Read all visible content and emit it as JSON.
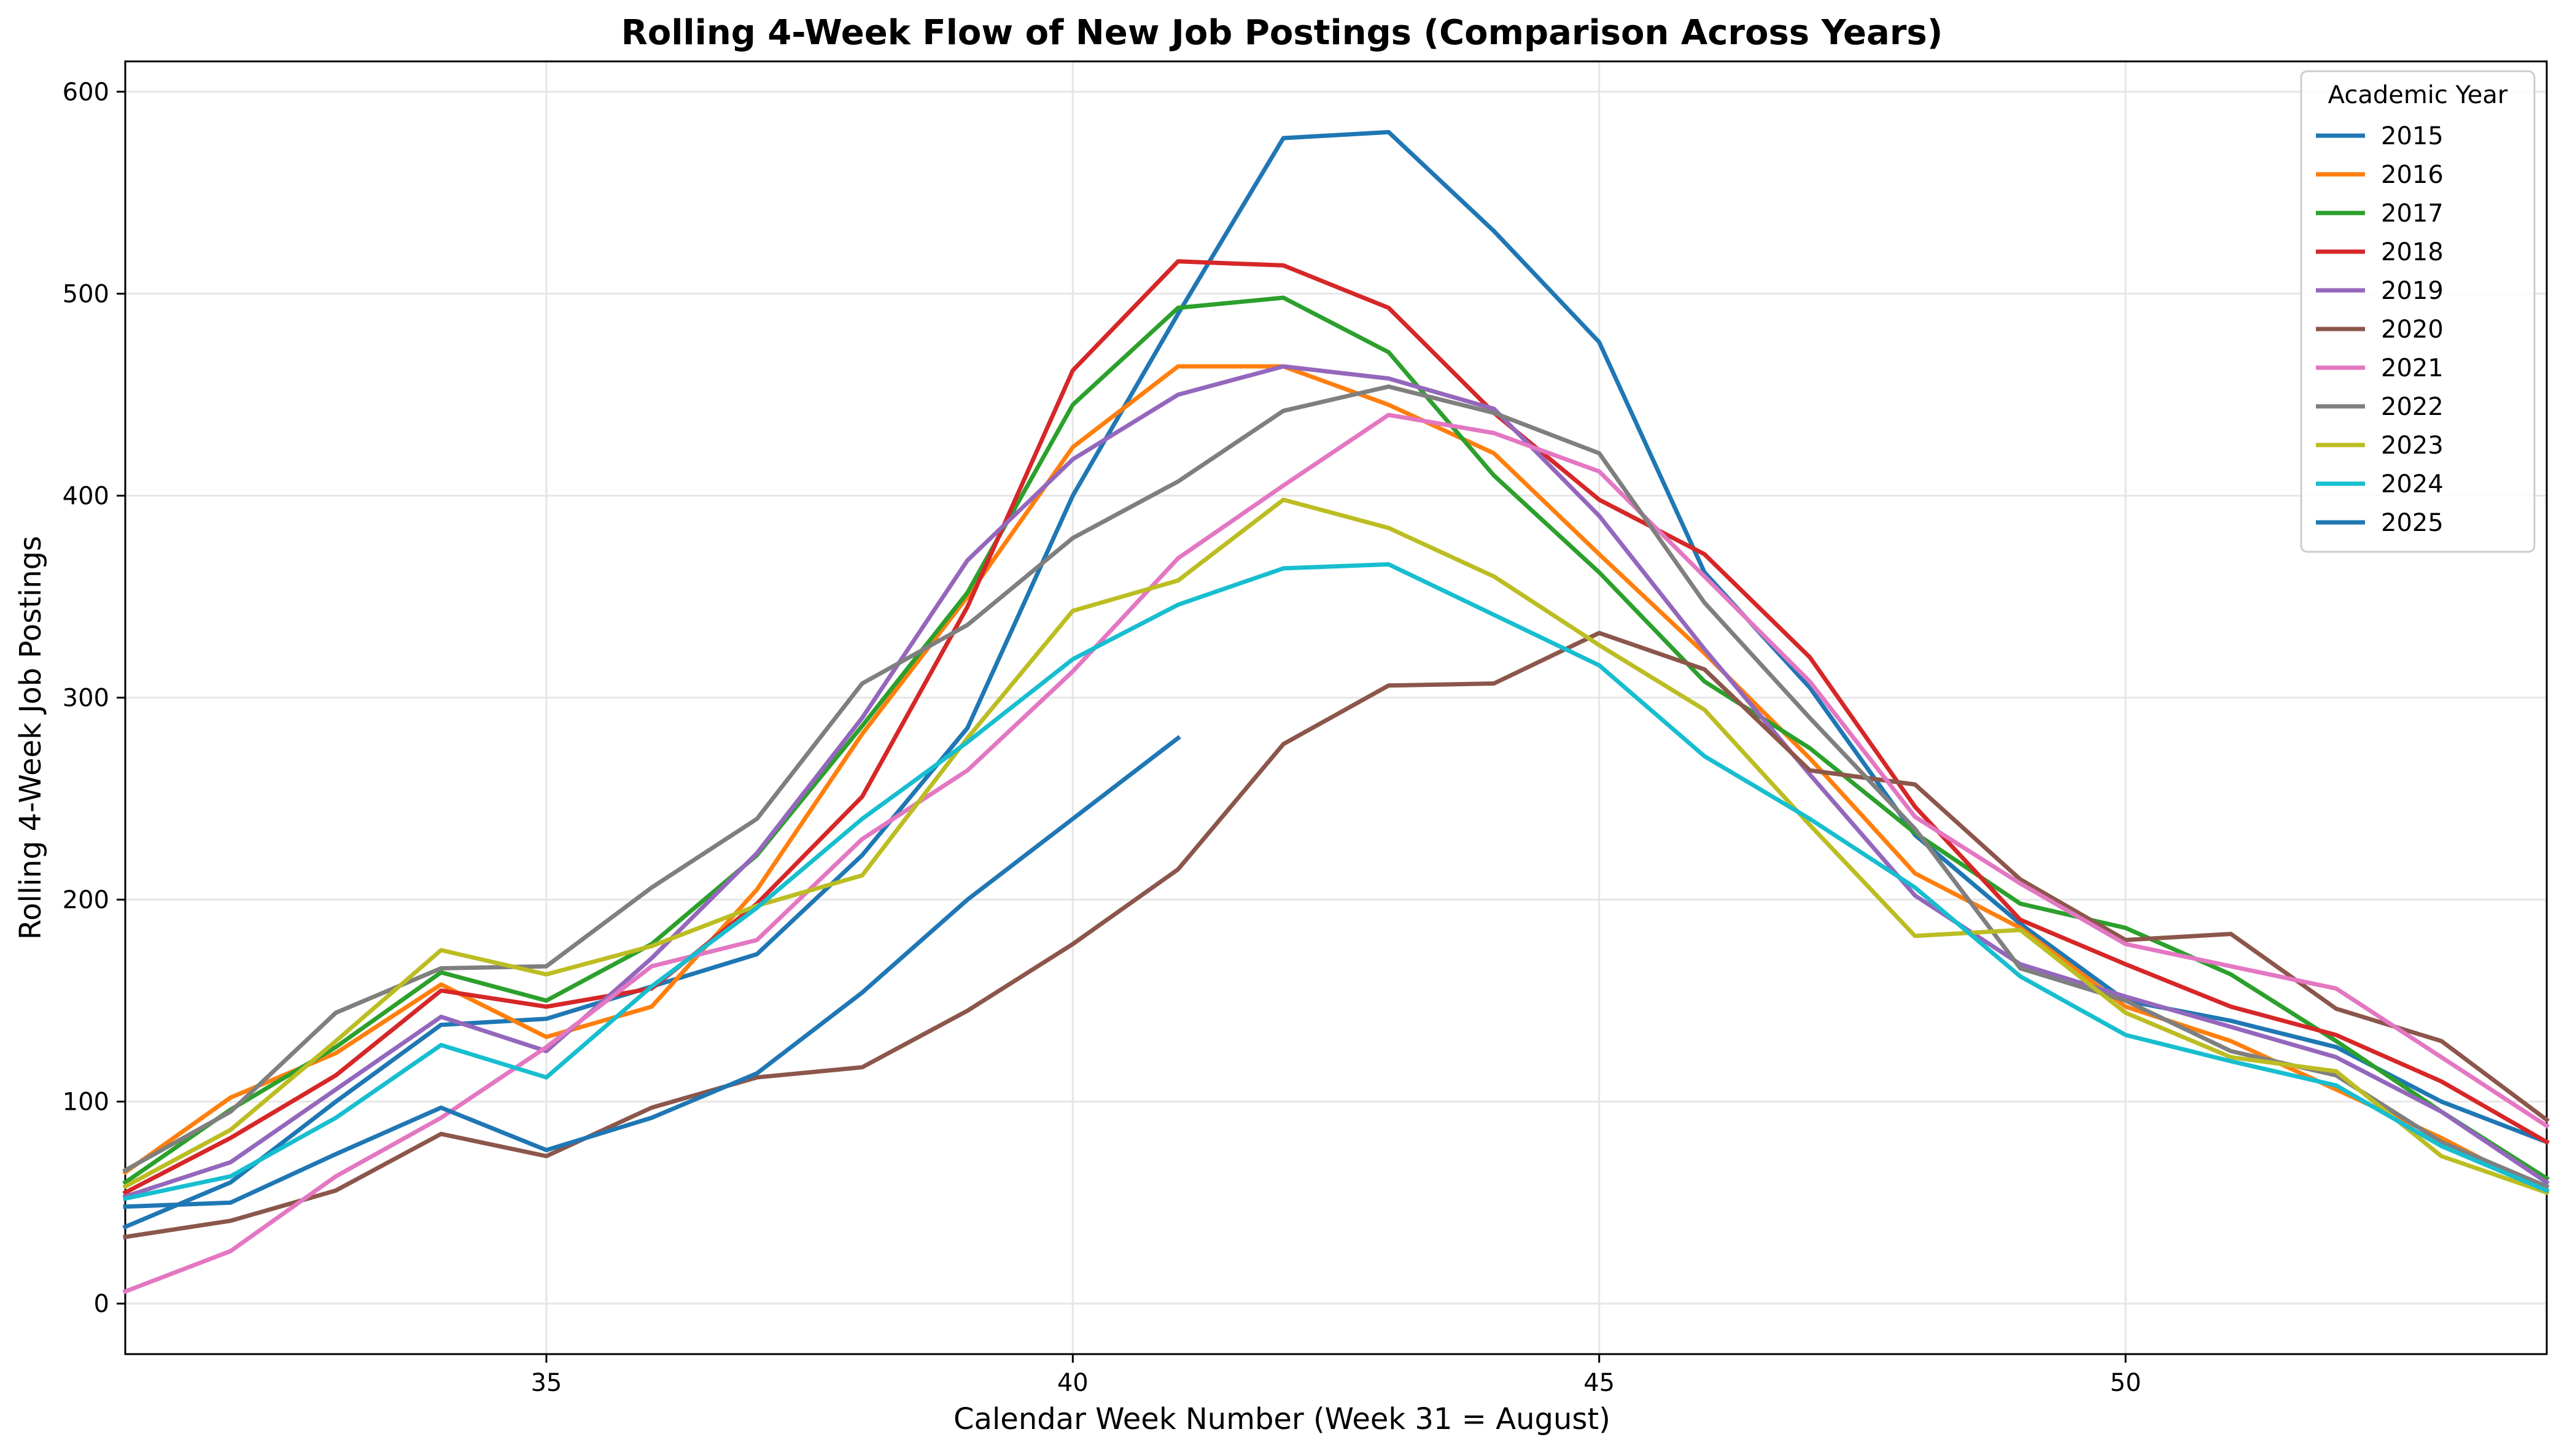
{
  "chart_data": {
    "type": "line",
    "title": "Rolling 4-Week Flow of New Job Postings (Comparison Across Years)",
    "xlabel": "Calendar Week Number (Week 31 = August)",
    "ylabel": "Rolling 4-Week Job Postings",
    "xlim": [
      31,
      54
    ],
    "ylim": [
      -25,
      615
    ],
    "xticks": [
      35,
      40,
      45,
      50
    ],
    "yticks": [
      0,
      100,
      200,
      300,
      400,
      500,
      600
    ],
    "grid": true,
    "legend": {
      "title": "Academic Year",
      "placement": "top-right"
    },
    "series": [
      {
        "name": "2015",
        "color": "#1f77b4",
        "x": [
          31,
          32,
          33,
          34,
          35,
          36,
          37,
          38,
          39,
          40,
          41,
          42,
          43,
          44,
          45,
          46,
          47,
          48,
          49,
          50,
          51,
          52,
          53,
          54
        ],
        "y": [
          38,
          60,
          100,
          138,
          141,
          157,
          173,
          222,
          285,
          400,
          490,
          577,
          580,
          531,
          476,
          362,
          305,
          232,
          188,
          150,
          140,
          127,
          100,
          80
        ]
      },
      {
        "name": "2016",
        "color": "#ff7f0e",
        "x": [
          31,
          32,
          33,
          34,
          35,
          36,
          37,
          38,
          39,
          40,
          41,
          42,
          43,
          44,
          45,
          46,
          47,
          48,
          49,
          50,
          51,
          52,
          53,
          54
        ],
        "y": [
          65,
          102,
          124,
          158,
          132,
          147,
          205,
          282,
          350,
          424,
          464,
          464,
          445,
          421,
          371,
          322,
          270,
          213,
          186,
          147,
          130,
          106,
          82,
          55
        ]
      },
      {
        "name": "2017",
        "color": "#2ca02c",
        "x": [
          31,
          32,
          33,
          34,
          35,
          36,
          37,
          38,
          39,
          40,
          41,
          42,
          43,
          44,
          45,
          46,
          47,
          48,
          49,
          50,
          51,
          52,
          53,
          54
        ],
        "y": [
          60,
          96,
          127,
          164,
          150,
          178,
          222,
          286,
          352,
          445,
          493,
          498,
          471,
          410,
          362,
          308,
          275,
          233,
          198,
          186,
          163,
          130,
          95,
          62
        ]
      },
      {
        "name": "2018",
        "color": "#d62728",
        "x": [
          31,
          32,
          33,
          34,
          35,
          36,
          37,
          38,
          39,
          40,
          41,
          42,
          43,
          44,
          45,
          46,
          47,
          48,
          49,
          50,
          51,
          52,
          53,
          54
        ],
        "y": [
          55,
          82,
          113,
          155,
          147,
          156,
          198,
          251,
          345,
          462,
          516,
          514,
          493,
          441,
          398,
          371,
          320,
          246,
          190,
          168,
          147,
          133,
          110,
          80
        ]
      },
      {
        "name": "2019",
        "color": "#9467bd",
        "x": [
          31,
          32,
          33,
          34,
          35,
          36,
          37,
          38,
          39,
          40,
          41,
          42,
          43,
          44,
          45,
          46,
          47,
          48,
          49,
          50,
          51,
          52,
          53,
          54
        ],
        "y": [
          53,
          70,
          106,
          142,
          125,
          171,
          223,
          290,
          368,
          418,
          450,
          464,
          458,
          443,
          390,
          324,
          262,
          202,
          168,
          152,
          137,
          122,
          95,
          60
        ]
      },
      {
        "name": "2020",
        "color": "#8c564b",
        "x": [
          31,
          32,
          33,
          34,
          35,
          36,
          37,
          38,
          39,
          40,
          41,
          42,
          43,
          44,
          45,
          46,
          47,
          48,
          49,
          50,
          51,
          52,
          53,
          54
        ],
        "y": [
          33,
          41,
          56,
          84,
          73,
          97,
          112,
          117,
          145,
          178,
          215,
          277,
          306,
          307,
          332,
          314,
          264,
          257,
          210,
          180,
          183,
          146,
          130,
          91
        ]
      },
      {
        "name": "2021",
        "color": "#e377c2",
        "x": [
          31,
          32,
          33,
          34,
          35,
          36,
          37,
          38,
          39,
          40,
          41,
          42,
          43,
          44,
          45,
          46,
          47,
          48,
          49,
          50,
          51,
          52,
          53,
          54
        ],
        "y": [
          6,
          26,
          63,
          92,
          127,
          167,
          180,
          230,
          264,
          313,
          369,
          405,
          440,
          431,
          412,
          360,
          308,
          241,
          208,
          178,
          167,
          156,
          122,
          88
        ]
      },
      {
        "name": "2022",
        "color": "#7f7f7f",
        "x": [
          31,
          32,
          33,
          34,
          35,
          36,
          37,
          38,
          39,
          40,
          41,
          42,
          43,
          44,
          45,
          46,
          47,
          48,
          49,
          50,
          51,
          52,
          53,
          54
        ],
        "y": [
          66,
          95,
          144,
          166,
          167,
          206,
          240,
          307,
          336,
          379,
          407,
          442,
          454,
          441,
          421,
          347,
          290,
          235,
          166,
          150,
          125,
          113,
          80,
          58
        ]
      },
      {
        "name": "2023",
        "color": "#bcbd22",
        "x": [
          31,
          32,
          33,
          34,
          35,
          36,
          37,
          38,
          39,
          40,
          41,
          42,
          43,
          44,
          45,
          46,
          47,
          48,
          49,
          50,
          51,
          52,
          53,
          54
        ],
        "y": [
          58,
          86,
          130,
          175,
          163,
          177,
          197,
          212,
          280,
          343,
          358,
          398,
          384,
          360,
          326,
          294,
          237,
          182,
          185,
          144,
          122,
          115,
          73,
          55
        ]
      },
      {
        "name": "2024",
        "color": "#17becf",
        "x": [
          31,
          32,
          33,
          34,
          35,
          36,
          37,
          38,
          39,
          40,
          41,
          42,
          43,
          44,
          45,
          46,
          47,
          48,
          49,
          50,
          51,
          52,
          53,
          54
        ],
        "y": [
          52,
          63,
          92,
          128,
          112,
          157,
          196,
          240,
          278,
          319,
          346,
          364,
          366,
          341,
          316,
          271,
          240,
          206,
          162,
          133,
          120,
          108,
          78,
          56
        ]
      },
      {
        "name": "2025",
        "color": "#1f77b4",
        "x": [
          31,
          32,
          33,
          34,
          35,
          36,
          37,
          38,
          39,
          40,
          41
        ],
        "y": [
          48,
          50,
          74,
          97,
          76,
          92,
          114,
          154,
          200,
          240,
          280
        ]
      }
    ]
  }
}
